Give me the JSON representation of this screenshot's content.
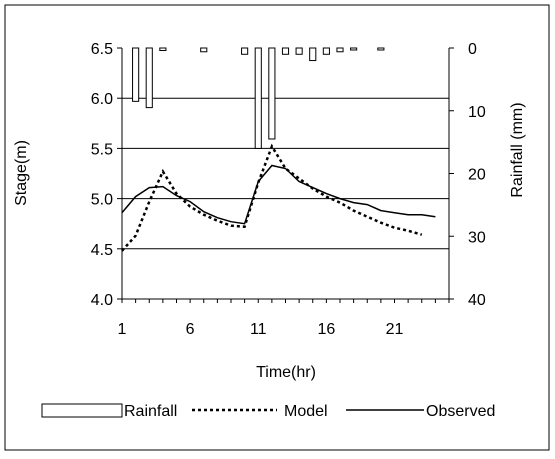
{
  "chart_data": {
    "type": "line",
    "xlabel": "Time(hr)",
    "ylabel_left": "Stage(m)",
    "ylabel_right": "Rainfall (mm)",
    "x_ticks": [
      "1",
      "6",
      "11",
      "16",
      "21"
    ],
    "y_left_ticks": [
      "4.0",
      "4.5",
      "5.0",
      "5.5",
      "6.0",
      "6.5"
    ],
    "y_right_ticks": [
      "0",
      "10",
      "20",
      "30",
      "40"
    ],
    "xlim": [
      1,
      25
    ],
    "ylim_left": [
      4.0,
      6.5
    ],
    "ylim_right": [
      0,
      40
    ],
    "right_axis_inverted": true,
    "grid": "horizontal",
    "legend_placement": "bottom",
    "legend": [
      {
        "name": "Rainfall",
        "style": "bar"
      },
      {
        "name": "Model",
        "style": "dotted"
      },
      {
        "name": "Observed",
        "style": "solid"
      }
    ],
    "series": [
      {
        "name": "Rainfall",
        "kind": "bar",
        "axis": "right",
        "x": [
          2,
          3,
          4,
          7,
          10,
          11,
          12,
          13,
          14,
          15,
          16,
          17,
          18,
          20
        ],
        "values": [
          8.5,
          9.5,
          0.4,
          0.6,
          1.0,
          16.0,
          14.5,
          1.0,
          1.0,
          2.0,
          1.0,
          0.6,
          0.3,
          0.3
        ]
      },
      {
        "name": "Model",
        "kind": "line",
        "style": "dotted",
        "axis": "left",
        "x": [
          1,
          2,
          3,
          4,
          5,
          6,
          7,
          8,
          9,
          10,
          11,
          12,
          13,
          14,
          15,
          16,
          17,
          18,
          19,
          20,
          21,
          22,
          23
        ],
        "values": [
          4.48,
          4.63,
          4.97,
          5.27,
          5.05,
          4.92,
          4.84,
          4.78,
          4.73,
          4.72,
          5.16,
          5.52,
          5.3,
          5.2,
          5.1,
          5.02,
          4.96,
          4.88,
          4.82,
          4.76,
          4.71,
          4.68,
          4.64
        ]
      },
      {
        "name": "Observed",
        "kind": "line",
        "style": "solid",
        "axis": "left",
        "x": [
          1,
          2,
          3,
          4,
          5,
          6,
          7,
          8,
          9,
          10,
          11,
          12,
          13,
          14,
          15,
          16,
          17,
          18,
          19,
          20,
          21,
          22,
          23,
          24
        ],
        "values": [
          4.86,
          5.02,
          5.11,
          5.12,
          5.03,
          4.97,
          4.87,
          4.81,
          4.77,
          4.75,
          5.17,
          5.33,
          5.3,
          5.17,
          5.11,
          5.05,
          5.0,
          4.96,
          4.94,
          4.88,
          4.86,
          4.84,
          4.84,
          4.82
        ]
      }
    ]
  }
}
